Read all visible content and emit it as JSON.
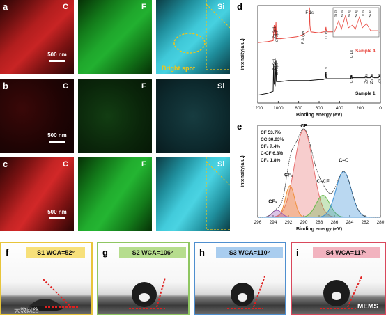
{
  "maps": {
    "row_a": {
      "letter": "a",
      "elements": [
        "C",
        "F",
        "Si"
      ],
      "scale": "500 nm",
      "annotation": "Bright spot"
    },
    "row_b": {
      "letter": "b",
      "elements": [
        "C",
        "F",
        "Si"
      ],
      "scale": "500 nm"
    },
    "row_c": {
      "letter": "c",
      "elements": [
        "C",
        "F",
        "Si"
      ],
      "scale": "500 nm"
    },
    "colors": {
      "C": "#d8262a",
      "F": "#1fa72c",
      "Si": "#3fc8d8"
    }
  },
  "panel_d": {
    "letter": "d",
    "chart_data": {
      "type": "line",
      "xlabel": "Binding energy (eV)",
      "ylabel": "intensity(a.u.)",
      "xlim": [
        1200,
        0
      ],
      "xticks": [
        1200,
        1000,
        800,
        600,
        400,
        200,
        0
      ],
      "series": [
        {
          "name": "Sample 4",
          "color": "#e8473f",
          "x": [
            1200,
            1100,
            1050,
            1040,
            1030,
            1022,
            1018,
            1010,
            980,
            900,
            820,
            760,
            700,
            694,
            690,
            686,
            680,
            600,
            560,
            540,
            533,
            530,
            520,
            450,
            350,
            290,
            285,
            280,
            200,
            150,
            110,
            100,
            90,
            60,
            50,
            40,
            20,
            10,
            0
          ],
          "y": [
            0.62,
            0.63,
            0.64,
            0.8,
            0.66,
            0.83,
            0.66,
            0.66,
            0.66,
            0.67,
            0.68,
            0.7,
            0.74,
            0.98,
            0.8,
            0.76,
            0.73,
            0.72,
            0.73,
            0.73,
            0.78,
            0.75,
            0.73,
            0.73,
            0.73,
            0.73,
            0.76,
            0.73,
            0.73,
            0.73,
            0.73,
            0.74,
            0.73,
            0.73,
            0.72,
            0.73,
            0.72,
            0.72,
            0.72
          ]
        },
        {
          "name": "Sample 1",
          "color": "#111111",
          "x": [
            1200,
            1100,
            1050,
            1045,
            1040,
            1030,
            1022,
            1018,
            1010,
            980,
            900,
            800,
            700,
            600,
            560,
            540,
            533,
            530,
            520,
            450,
            350,
            290,
            285,
            280,
            200,
            150,
            140,
            130,
            110,
            100,
            90,
            60,
            20,
            10,
            0
          ],
          "y": [
            0.08,
            0.1,
            0.12,
            0.4,
            0.2,
            0.18,
            0.44,
            0.22,
            0.22,
            0.22,
            0.23,
            0.23,
            0.23,
            0.24,
            0.24,
            0.25,
            0.32,
            0.26,
            0.25,
            0.25,
            0.25,
            0.25,
            0.29,
            0.26,
            0.26,
            0.26,
            0.28,
            0.26,
            0.26,
            0.26,
            0.28,
            0.26,
            0.26,
            0.28,
            0.27
          ]
        }
      ],
      "annotations": [
        "Zn 2p1",
        "Zn 2p3",
        "F Auger",
        "F 1s",
        "O 1s",
        "C 1s",
        "Sample 4",
        "Zn 2p1",
        "Zn 2p3",
        "O 1s",
        "C 1s",
        "Zn 3s",
        "Zn 3p",
        "Zn 3d",
        "Sample 1"
      ],
      "inset_labels": [
        "Si 2s",
        "Zn 3s",
        "Si 2p",
        "Zn 3p",
        "F 2s",
        "Zn 3d"
      ]
    }
  },
  "panel_e": {
    "letter": "e",
    "chart_data": {
      "type": "line",
      "xlabel": "Binding energy (eV)",
      "ylabel": "intensity(a.u.)",
      "xlim": [
        296,
        280
      ],
      "xticks": [
        296,
        294,
        292,
        290,
        288,
        286,
        284,
        282,
        280
      ],
      "components": [
        {
          "name": "CF",
          "center": 290.0,
          "height": 1.0,
          "width": 1.2,
          "color": "#e76f6f"
        },
        {
          "name": "CF2",
          "center": 291.8,
          "height": 0.36,
          "width": 0.6,
          "color": "#ef8f3a"
        },
        {
          "name": "CF3",
          "center": 293.5,
          "height": 0.08,
          "width": 0.6,
          "color": "#9b59b6"
        },
        {
          "name": "C–CF",
          "center": 287.5,
          "height": 0.25,
          "width": 0.9,
          "color": "#67b84a"
        },
        {
          "name": "C–C",
          "center": 284.8,
          "height": 0.52,
          "width": 1.0,
          "color": "#3a8fd6"
        }
      ],
      "legend_text": [
        "CF 53.7%",
        "CC 30.03%",
        "CF₂ 7.4%",
        "C-CF 6.8%",
        "CF₃ 1.8%"
      ],
      "peak_labels": [
        "CF",
        "CF₂",
        "CF₃",
        "C–CF",
        "C–C"
      ]
    }
  },
  "wca": [
    {
      "letter": "f",
      "title": "S1 WCA=52°",
      "border": "#e8c53a",
      "title_bg": "#f7e07a",
      "angle": 52
    },
    {
      "letter": "g",
      "title": "S2 WCA=106°",
      "border": "#8fc661",
      "title_bg": "#b6dd8e",
      "angle": 106
    },
    {
      "letter": "h",
      "title": "S3 WCA=110°",
      "border": "#4f8fcf",
      "title_bg": "#a9cdef",
      "angle": 110
    },
    {
      "letter": "i",
      "title": "S4 WCA=117°",
      "border": "#d9485c",
      "title_bg": "#f2b3bf",
      "angle": 117
    }
  ],
  "watermarks": {
    "left": "大数网络",
    "right": "MEMS"
  }
}
